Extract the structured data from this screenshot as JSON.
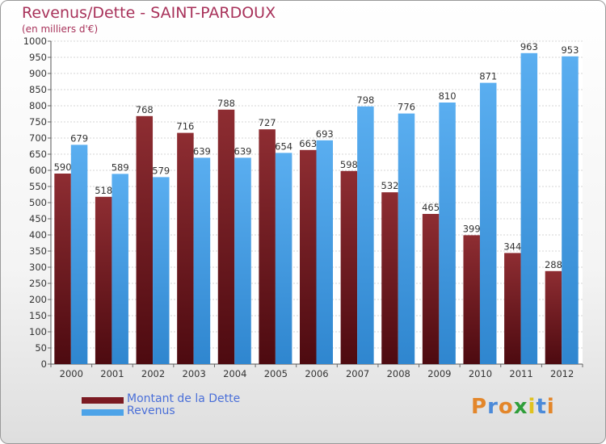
{
  "colors": {
    "dette": "#7b1a22",
    "revenus": "#4da3e8",
    "title": "#a8325a",
    "legend_text": "#4a6fd8"
  },
  "logo": {
    "text": "Proxiti",
    "letters": [
      {
        "ch": "P",
        "color": "#e3862a"
      },
      {
        "ch": "r",
        "color": "#4b8ad9"
      },
      {
        "ch": "o",
        "color": "#e3862a"
      },
      {
        "ch": "x",
        "color": "#2f9e3a"
      },
      {
        "ch": "i",
        "color": "#e0c21f"
      },
      {
        "ch": "t",
        "color": "#4b8ad9"
      },
      {
        "ch": "i",
        "color": "#e3862a"
      }
    ]
  },
  "chart_data": {
    "type": "bar",
    "title": "Revenus/Dette - SAINT-PARDOUX",
    "subtitle": "(en milliers d'€)",
    "categories": [
      "2000",
      "2001",
      "2002",
      "2003",
      "2004",
      "2005",
      "2006",
      "2007",
      "2008",
      "2009",
      "2010",
      "2011",
      "2012"
    ],
    "series": [
      {
        "name": "Montant de la Dette",
        "values": [
          590,
          518,
          768,
          716,
          788,
          727,
          663,
          598,
          532,
          465,
          399,
          344,
          288
        ]
      },
      {
        "name": "Revenus",
        "values": [
          679,
          589,
          579,
          639,
          639,
          654,
          693,
          798,
          776,
          810,
          871,
          963,
          953
        ]
      }
    ],
    "ylim": [
      0,
      1000
    ],
    "ytick_step": 50,
    "grid": true,
    "legend_position": "bottom-left"
  }
}
